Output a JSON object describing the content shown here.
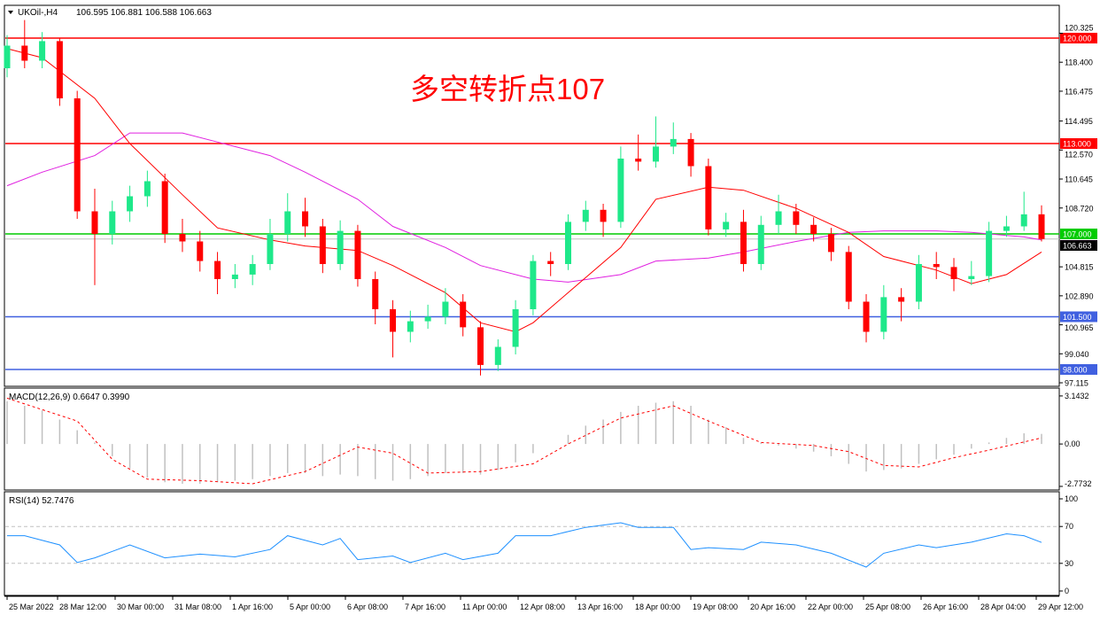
{
  "header": {
    "symbol": "UKOil-,H4",
    "ohlc": "106.595 106.881 106.588 106.663"
  },
  "annotation": "多空转折点107",
  "colors": {
    "bull": "#1ee88a",
    "bear": "#ff0000",
    "ma_fast": "#ff0000",
    "ma_slow": "#e020e0",
    "macd_hist": "#c0c0c0",
    "macd_signal": "#ff0000",
    "rsi": "#1e90ff",
    "level_red": "#ff0000",
    "level_green": "#00cc00",
    "level_blue": "#4060e0"
  },
  "chart_data": [
    {
      "type": "candlestick",
      "title": "UKOil-,H4",
      "ylim": [
        96.94,
        122.06
      ],
      "y_ticks": [
        "120.325",
        "118.400",
        "116.475",
        "114.495",
        "112.570",
        "110.645",
        "108.720",
        "104.815",
        "102.890",
        "100.965",
        "99.040",
        "97.115"
      ],
      "x_tick_labels": [
        "25 Mar 2022",
        "28 Mar 12:00",
        "30 Mar 00:00",
        "31 Mar 08:00",
        "1 Apr 16:00",
        "5 Apr 00:00",
        "6 Apr 08:00",
        "7 Apr 16:00",
        "11 Apr 00:00",
        "12 Apr 08:00",
        "13 Apr 16:00",
        "18 Apr 00:00",
        "19 Apr 08:00",
        "20 Apr 16:00",
        "22 Apr 00:00",
        "25 Apr 08:00",
        "26 Apr 16:00",
        "28 Apr 04:00",
        "29 Apr 12:00"
      ],
      "candles_ohlc": [
        [
          118.0,
          120.2,
          117.4,
          119.5
        ],
        [
          119.5,
          121.2,
          118.0,
          118.5
        ],
        [
          118.5,
          120.4,
          118.0,
          119.8
        ],
        [
          119.8,
          120.0,
          115.5,
          116.0
        ],
        [
          116.0,
          116.5,
          108.0,
          108.5
        ],
        [
          108.5,
          110.0,
          103.6,
          107.0
        ],
        [
          107.0,
          109.2,
          106.3,
          108.5
        ],
        [
          108.5,
          110.2,
          107.8,
          109.5
        ],
        [
          109.5,
          111.2,
          108.8,
          110.5
        ],
        [
          110.5,
          111.0,
          106.4,
          107.0
        ],
        [
          107.0,
          108.0,
          105.8,
          106.5
        ],
        [
          106.5,
          107.2,
          104.5,
          105.2
        ],
        [
          105.2,
          105.8,
          103.0,
          104.0
        ],
        [
          104.0,
          105.0,
          103.4,
          104.3
        ],
        [
          104.3,
          105.6,
          103.6,
          105.0
        ],
        [
          105.0,
          108.0,
          104.6,
          107.0
        ],
        [
          107.0,
          109.7,
          106.5,
          108.5
        ],
        [
          108.5,
          109.4,
          106.8,
          107.5
        ],
        [
          107.5,
          108.0,
          104.4,
          105.0
        ],
        [
          105.0,
          107.9,
          104.6,
          107.2
        ],
        [
          107.2,
          107.6,
          103.5,
          104.0
        ],
        [
          104.0,
          104.5,
          101.0,
          102.0
        ],
        [
          102.0,
          102.6,
          98.8,
          100.5
        ],
        [
          100.5,
          101.9,
          99.8,
          101.2
        ],
        [
          101.2,
          102.3,
          100.7,
          101.5
        ],
        [
          101.5,
          103.4,
          101.0,
          102.5
        ],
        [
          102.5,
          103.0,
          100.2,
          100.8
        ],
        [
          100.8,
          101.2,
          97.6,
          98.3
        ],
        [
          98.3,
          100.0,
          97.9,
          99.5
        ],
        [
          99.5,
          102.6,
          99.0,
          102.0
        ],
        [
          102.0,
          105.6,
          101.6,
          105.2
        ],
        [
          105.2,
          105.8,
          104.2,
          105.0
        ],
        [
          105.0,
          108.3,
          104.6,
          107.8
        ],
        [
          107.8,
          109.2,
          107.2,
          108.6
        ],
        [
          108.6,
          109.0,
          106.8,
          107.8
        ],
        [
          107.8,
          112.8,
          107.4,
          112.0
        ],
        [
          112.0,
          113.6,
          111.2,
          111.8
        ],
        [
          111.8,
          114.8,
          111.4,
          112.8
        ],
        [
          112.8,
          114.4,
          112.3,
          113.3
        ],
        [
          113.3,
          113.7,
          110.8,
          111.5
        ],
        [
          111.5,
          112.0,
          106.9,
          107.3
        ],
        [
          107.3,
          108.4,
          106.8,
          107.8
        ],
        [
          107.8,
          108.6,
          104.5,
          105.0
        ],
        [
          105.0,
          108.2,
          104.6,
          107.6
        ],
        [
          107.6,
          109.6,
          107.0,
          108.5
        ],
        [
          108.5,
          109.0,
          107.0,
          107.6
        ],
        [
          107.6,
          108.1,
          106.5,
          107.0
        ],
        [
          107.0,
          107.4,
          105.2,
          105.8
        ],
        [
          105.8,
          106.2,
          102.0,
          102.5
        ],
        [
          102.5,
          103.0,
          99.8,
          100.5
        ],
        [
          100.5,
          103.6,
          100.0,
          102.8
        ],
        [
          102.8,
          103.4,
          101.2,
          102.5
        ],
        [
          102.5,
          105.6,
          102.0,
          105.0
        ],
        [
          105.0,
          105.8,
          104.0,
          104.8
        ],
        [
          104.8,
          105.4,
          103.2,
          104.0
        ],
        [
          104.0,
          105.2,
          103.6,
          104.2
        ],
        [
          104.2,
          107.8,
          103.8,
          107.2
        ],
        [
          107.2,
          108.2,
          106.8,
          107.5
        ],
        [
          107.5,
          109.8,
          107.2,
          108.3
        ],
        [
          108.3,
          108.9,
          106.5,
          106.663
        ]
      ],
      "ma_fast": [
        [
          0,
          119.3
        ],
        [
          2,
          118.7
        ],
        [
          5,
          116.0
        ],
        [
          7,
          113.0
        ],
        [
          10,
          109.6
        ],
        [
          12,
          107.4
        ],
        [
          15,
          106.6
        ],
        [
          17,
          106.2
        ],
        [
          20,
          105.9
        ],
        [
          22,
          104.9
        ],
        [
          25,
          103.1
        ],
        [
          27,
          101.1
        ],
        [
          29,
          100.5
        ],
        [
          30,
          101.1
        ],
        [
          32,
          103.1
        ],
        [
          35,
          106.1
        ],
        [
          37,
          109.3
        ],
        [
          40,
          110.1
        ],
        [
          42,
          109.9
        ],
        [
          45,
          108.7
        ],
        [
          48,
          107.1
        ],
        [
          50,
          105.5
        ],
        [
          53,
          104.6
        ],
        [
          55,
          103.7
        ],
        [
          57,
          104.3
        ],
        [
          59,
          105.8
        ]
      ],
      "ma_slow": [
        [
          0,
          110.2
        ],
        [
          2,
          111.1
        ],
        [
          5,
          112.2
        ],
        [
          7,
          113.7
        ],
        [
          10,
          113.7
        ],
        [
          12,
          113.1
        ],
        [
          15,
          112.2
        ],
        [
          17,
          111.1
        ],
        [
          20,
          109.3
        ],
        [
          22,
          107.5
        ],
        [
          25,
          106.1
        ],
        [
          27,
          104.9
        ],
        [
          30,
          104.0
        ],
        [
          32,
          103.8
        ],
        [
          35,
          104.3
        ],
        [
          37,
          105.2
        ],
        [
          40,
          105.4
        ],
        [
          42,
          105.8
        ],
        [
          45,
          106.5
        ],
        [
          48,
          107.1
        ],
        [
          50,
          107.2
        ],
        [
          53,
          107.2
        ],
        [
          55,
          107.1
        ],
        [
          58,
          106.8
        ],
        [
          59,
          106.6
        ]
      ],
      "levels": [
        {
          "value": 120.0,
          "label": "120.000",
          "color": "red"
        },
        {
          "value": 113.0,
          "label": "113.000",
          "color": "red"
        },
        {
          "value": 107.0,
          "label": "107.000",
          "color": "green"
        },
        {
          "value": 101.5,
          "label": "101.500",
          "color": "blue"
        },
        {
          "value": 98.0,
          "label": "98.000",
          "color": "blue"
        }
      ],
      "current_price": {
        "value": 106.663,
        "label": "106.663"
      }
    },
    {
      "type": "bar",
      "title": "MACD(12,26,9) 0.6647 0.3990",
      "ylim": [
        -2.95,
        3.6
      ],
      "y_ticks": [
        "3.1432",
        "0.00",
        "-2.7732"
      ],
      "histogram": [
        2.8,
        2.5,
        2.2,
        1.6,
        0.9,
        0.1,
        -0.8,
        -1.6,
        -2.2,
        -2.5,
        -2.6,
        -2.6,
        -2.5,
        -2.4,
        -2.3,
        -2.1,
        -1.9,
        -1.9,
        -2.1,
        -2.0,
        -2.1,
        -2.3,
        -2.4,
        -2.3,
        -2.1,
        -1.9,
        -1.9,
        -2.0,
        -1.7,
        -1.2,
        -0.6,
        0.0,
        0.6,
        1.2,
        1.6,
        2.1,
        2.5,
        2.7,
        2.8,
        2.5,
        1.6,
        1.1,
        0.4,
        0.1,
        -0.1,
        -0.3,
        -0.5,
        -0.8,
        -1.3,
        -1.8,
        -1.7,
        -1.6,
        -1.3,
        -1.0,
        -0.7,
        -0.3,
        0.1,
        0.4,
        0.7,
        0.66
      ],
      "signal": [
        [
          0,
          3.0
        ],
        [
          4,
          1.5
        ],
        [
          6,
          -1.0
        ],
        [
          8,
          -2.3
        ],
        [
          11,
          -2.4
        ],
        [
          14,
          -2.6
        ],
        [
          17,
          -1.8
        ],
        [
          20,
          -0.2
        ],
        [
          22,
          -0.6
        ],
        [
          24,
          -1.9
        ],
        [
          27,
          -1.8
        ],
        [
          30,
          -1.3
        ],
        [
          32,
          0.0
        ],
        [
          35,
          1.7
        ],
        [
          38,
          2.5
        ],
        [
          40,
          1.5
        ],
        [
          43,
          0.1
        ],
        [
          46,
          -0.1
        ],
        [
          48,
          -0.5
        ],
        [
          50,
          -1.4
        ],
        [
          52,
          -1.5
        ],
        [
          54,
          -0.9
        ],
        [
          56,
          -0.4
        ],
        [
          59,
          0.4
        ]
      ]
    },
    {
      "type": "line",
      "title": "RSI(14) 52.7476",
      "ylim": [
        0,
        100
      ],
      "y_ticks": [
        "100",
        "70",
        "30",
        "0"
      ],
      "levels": [
        70,
        30
      ],
      "values": [
        [
          0,
          60
        ],
        [
          1,
          60
        ],
        [
          3,
          50
        ],
        [
          4,
          31
        ],
        [
          5,
          36
        ],
        [
          7,
          50
        ],
        [
          9,
          36
        ],
        [
          11,
          40
        ],
        [
          13,
          37
        ],
        [
          15,
          45
        ],
        [
          16,
          60
        ],
        [
          18,
          50
        ],
        [
          19,
          57
        ],
        [
          20,
          34
        ],
        [
          22,
          38
        ],
        [
          23,
          31
        ],
        [
          25,
          41
        ],
        [
          26,
          34
        ],
        [
          28,
          41
        ],
        [
          29,
          60
        ],
        [
          31,
          60
        ],
        [
          33,
          69
        ],
        [
          35,
          74
        ],
        [
          36,
          69
        ],
        [
          38,
          69
        ],
        [
          39,
          45
        ],
        [
          40,
          47
        ],
        [
          42,
          45
        ],
        [
          43,
          53
        ],
        [
          45,
          50
        ],
        [
          47,
          41
        ],
        [
          49,
          26
        ],
        [
          50,
          41
        ],
        [
          52,
          50
        ],
        [
          53,
          47
        ],
        [
          55,
          53
        ],
        [
          57,
          62
        ],
        [
          58,
          60
        ],
        [
          59,
          52.7
        ]
      ]
    }
  ]
}
